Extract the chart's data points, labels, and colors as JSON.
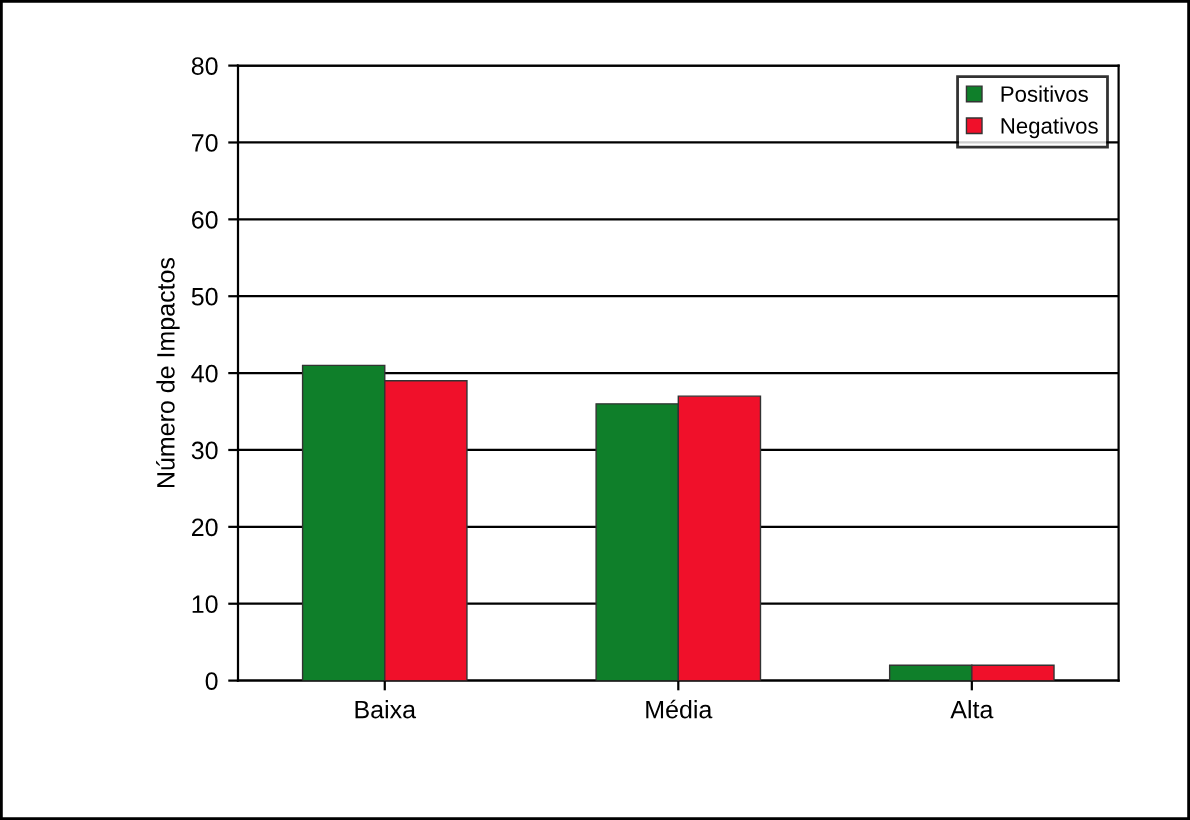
{
  "chart_data": {
    "type": "bar",
    "ylabel": "Número de Impactos",
    "categories": [
      "Baixa",
      "Média",
      "Alta"
    ],
    "series": [
      {
        "name": "Positivos",
        "color": "#0f7f2a",
        "values": [
          41,
          36,
          2
        ]
      },
      {
        "name": "Negativos",
        "color": "#f0102a",
        "values": [
          39,
          37,
          2
        ]
      }
    ],
    "ylim": [
      0,
      80
    ],
    "yticks": [
      0,
      10,
      20,
      30,
      40,
      50,
      60,
      70,
      80
    ],
    "grid": "y",
    "legend": "top right"
  }
}
